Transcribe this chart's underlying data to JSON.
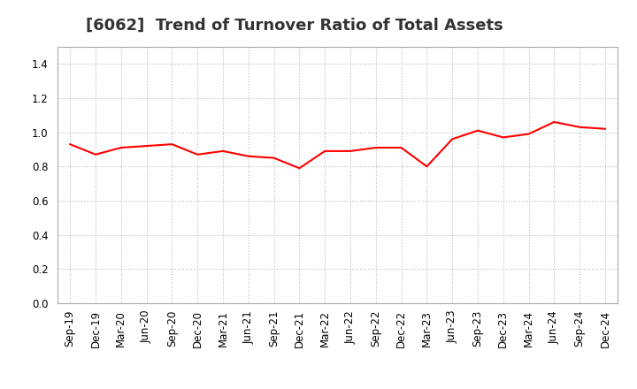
{
  "title": "[6062]  Trend of Turnover Ratio of Total Assets",
  "labels": [
    "Sep-19",
    "Dec-19",
    "Mar-20",
    "Jun-20",
    "Sep-20",
    "Dec-20",
    "Mar-21",
    "Jun-21",
    "Sep-21",
    "Dec-21",
    "Mar-22",
    "Jun-22",
    "Sep-22",
    "Dec-22",
    "Mar-23",
    "Jun-23",
    "Sep-23",
    "Dec-23",
    "Mar-24",
    "Jun-24",
    "Sep-24",
    "Dec-24"
  ],
  "values": [
    0.93,
    0.87,
    0.91,
    0.92,
    0.93,
    0.87,
    0.89,
    0.86,
    0.85,
    0.79,
    0.89,
    0.89,
    0.91,
    0.91,
    0.8,
    0.96,
    1.01,
    0.97,
    0.99,
    1.06,
    1.03,
    1.02
  ],
  "line_color": "#FF0000",
  "line_width": 1.5,
  "ylim": [
    0.0,
    1.5
  ],
  "yticks": [
    0.0,
    0.2,
    0.4,
    0.6,
    0.8,
    1.0,
    1.2,
    1.4
  ],
  "background_color": "#ffffff",
  "plot_bg_color": "#ffffff",
  "grid_color": "#bbbbbb",
  "title_fontsize": 13,
  "tick_fontsize": 8.5,
  "title_color": "#333333"
}
